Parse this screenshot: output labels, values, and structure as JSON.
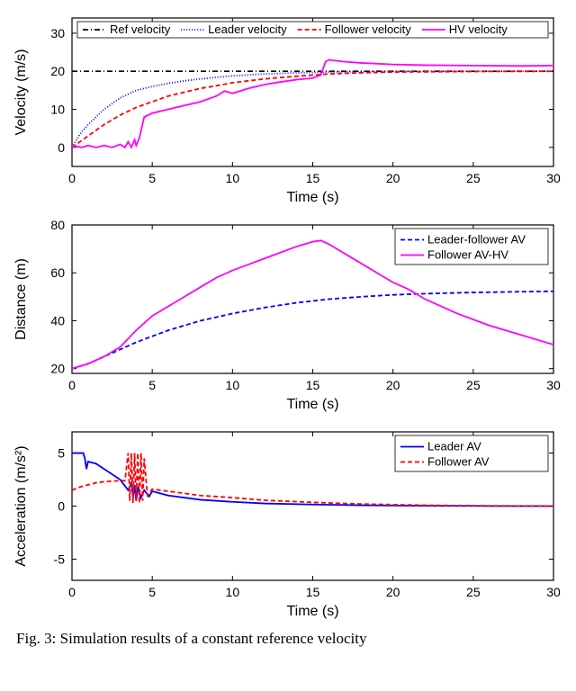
{
  "chart1": {
    "type": "line",
    "title": null,
    "xlabel": "Time (s)",
    "ylabel": "Velocity (m/s)",
    "xlim": [
      0,
      30
    ],
    "ylim": [
      -5,
      34
    ],
    "xticks": [
      0,
      5,
      10,
      15,
      20,
      25,
      30
    ],
    "yticks": [
      0,
      10,
      20,
      30
    ],
    "label_fontsize": 16,
    "tick_fontsize": 14,
    "background_color": "#ffffff",
    "grid_color": "#000000",
    "series": [
      {
        "name": "Ref velocity",
        "color": "#000000",
        "dash": "6,3,1,3",
        "width": 1.6,
        "points": [
          [
            0,
            20
          ],
          [
            30,
            20
          ]
        ]
      },
      {
        "name": "Leader velocity",
        "color": "#0000ff",
        "dash": "1,2",
        "width": 1.8,
        "points": [
          [
            0,
            0
          ],
          [
            0.5,
            3.5
          ],
          [
            1,
            6
          ],
          [
            2,
            10
          ],
          [
            3,
            13
          ],
          [
            4,
            15
          ],
          [
            5,
            16
          ],
          [
            6,
            16.8
          ],
          [
            7,
            17.5
          ],
          [
            8,
            18
          ],
          [
            9,
            18.4
          ],
          [
            10,
            18.8
          ],
          [
            12,
            19.3
          ],
          [
            14,
            19.6
          ],
          [
            16,
            19.8
          ],
          [
            18,
            19.9
          ],
          [
            20,
            19.95
          ],
          [
            25,
            20
          ],
          [
            30,
            20
          ]
        ]
      },
      {
        "name": "Follower velocity",
        "color": "#ff0000",
        "dash": "5,3",
        "width": 1.8,
        "points": [
          [
            0,
            0
          ],
          [
            0.5,
            1.5
          ],
          [
            1,
            3
          ],
          [
            2,
            6
          ],
          [
            3,
            8.5
          ],
          [
            4,
            10.5
          ],
          [
            5,
            12
          ],
          [
            6,
            13.5
          ],
          [
            7,
            14.5
          ],
          [
            8,
            15.5
          ],
          [
            9,
            16.2
          ],
          [
            10,
            17
          ],
          [
            12,
            18
          ],
          [
            14,
            18.7
          ],
          [
            16,
            19.3
          ],
          [
            18,
            19.6
          ],
          [
            20,
            19.8
          ],
          [
            25,
            19.95
          ],
          [
            30,
            20
          ]
        ]
      },
      {
        "name": "HV velocity",
        "color": "#ff00ff",
        "dash": "none",
        "width": 1.8,
        "points": [
          [
            0,
            0
          ],
          [
            0.3,
            0.3
          ],
          [
            0.6,
            0
          ],
          [
            1,
            0.5
          ],
          [
            1.5,
            0
          ],
          [
            2,
            0.5
          ],
          [
            2.5,
            0
          ],
          [
            3,
            0.8
          ],
          [
            3.3,
            0
          ],
          [
            3.5,
            1.5
          ],
          [
            3.7,
            0
          ],
          [
            3.9,
            2
          ],
          [
            4,
            0.5
          ],
          [
            4.2,
            2.5
          ],
          [
            4.5,
            8
          ],
          [
            5,
            9
          ],
          [
            5.5,
            9.5
          ],
          [
            6,
            10
          ],
          [
            7,
            11
          ],
          [
            8,
            12
          ],
          [
            9,
            13.5
          ],
          [
            9.5,
            14.8
          ],
          [
            10,
            14.2
          ],
          [
            11,
            15.5
          ],
          [
            12,
            16.5
          ],
          [
            13,
            17.2
          ],
          [
            14,
            17.8
          ],
          [
            15,
            18.2
          ],
          [
            15.5,
            19
          ],
          [
            15.8,
            22.5
          ],
          [
            16,
            23
          ],
          [
            17,
            22.5
          ],
          [
            18,
            22.2
          ],
          [
            20,
            21.8
          ],
          [
            22,
            21.6
          ],
          [
            25,
            21.5
          ],
          [
            28,
            21.4
          ],
          [
            30,
            21.5
          ]
        ]
      }
    ],
    "legend": {
      "position": "top",
      "items": [
        "Ref velocity",
        "Leader velocity",
        "Follower velocity",
        "HV velocity"
      ]
    }
  },
  "chart2": {
    "type": "line",
    "xlabel": "Time (s)",
    "ylabel": "Distance (m)",
    "xlim": [
      0,
      30
    ],
    "ylim": [
      18,
      80
    ],
    "xticks": [
      0,
      5,
      10,
      15,
      20,
      25,
      30
    ],
    "yticks": [
      20,
      40,
      60,
      80
    ],
    "label_fontsize": 16,
    "tick_fontsize": 14,
    "background_color": "#ffffff",
    "series": [
      {
        "name": "Leader-follower AV",
        "color": "#0000ff",
        "dash": "5,3",
        "width": 1.8,
        "points": [
          [
            0,
            20
          ],
          [
            1,
            22
          ],
          [
            2,
            25
          ],
          [
            3,
            28
          ],
          [
            4,
            31
          ],
          [
            5,
            33.5
          ],
          [
            6,
            36
          ],
          [
            7,
            38
          ],
          [
            8,
            40
          ],
          [
            9,
            41.5
          ],
          [
            10,
            43
          ],
          [
            12,
            45.5
          ],
          [
            14,
            47.5
          ],
          [
            16,
            49
          ],
          [
            18,
            50
          ],
          [
            20,
            50.8
          ],
          [
            22,
            51.3
          ],
          [
            25,
            51.8
          ],
          [
            28,
            52.1
          ],
          [
            30,
            52.3
          ]
        ]
      },
      {
        "name": "Follower AV-HV",
        "color": "#ff00ff",
        "dash": "none",
        "width": 1.8,
        "points": [
          [
            0,
            20
          ],
          [
            1,
            22
          ],
          [
            2,
            25
          ],
          [
            3,
            29
          ],
          [
            4,
            36
          ],
          [
            5,
            42
          ],
          [
            6,
            46
          ],
          [
            7,
            50
          ],
          [
            8,
            54
          ],
          [
            9,
            58
          ],
          [
            10,
            61
          ],
          [
            11,
            63.5
          ],
          [
            12,
            66
          ],
          [
            13,
            68.5
          ],
          [
            14,
            71
          ],
          [
            15,
            73
          ],
          [
            15.5,
            73.5
          ],
          [
            16,
            72
          ],
          [
            17,
            68
          ],
          [
            18,
            64
          ],
          [
            19,
            60
          ],
          [
            20,
            56
          ],
          [
            21,
            53
          ],
          [
            22,
            49
          ],
          [
            24,
            43
          ],
          [
            26,
            38
          ],
          [
            28,
            34
          ],
          [
            30,
            30
          ]
        ]
      }
    ],
    "legend": {
      "position": "top-right",
      "items": [
        "Leader-follower AV",
        "Follower AV-HV"
      ]
    }
  },
  "chart3": {
    "type": "line",
    "xlabel": "Time (s)",
    "ylabel": "Acceleration (m/s²)",
    "ylabel_display": "Acceleration (m/s²)",
    "xlim": [
      0,
      30
    ],
    "ylim": [
      -7,
      7
    ],
    "xticks": [
      0,
      5,
      10,
      15,
      20,
      25,
      30
    ],
    "yticks": [
      -5,
      0,
      5
    ],
    "label_fontsize": 16,
    "tick_fontsize": 14,
    "background_color": "#ffffff",
    "series": [
      {
        "name": "Leader AV",
        "color": "#0000ff",
        "dash": "none",
        "width": 1.8,
        "points": [
          [
            0,
            5
          ],
          [
            0.3,
            5
          ],
          [
            0.5,
            5
          ],
          [
            0.7,
            5
          ],
          [
            0.8,
            4.5
          ],
          [
            0.9,
            3.5
          ],
          [
            1,
            4.2
          ],
          [
            1.5,
            4
          ],
          [
            2,
            3.5
          ],
          [
            2.5,
            3
          ],
          [
            3,
            2.5
          ],
          [
            3.5,
            1.5
          ],
          [
            3.7,
            2.2
          ],
          [
            3.8,
            0.8
          ],
          [
            3.9,
            2
          ],
          [
            4,
            0.5
          ],
          [
            4.1,
            1.8
          ],
          [
            4.3,
            0.8
          ],
          [
            4.5,
            1.5
          ],
          [
            4.8,
            0.9
          ],
          [
            5,
            1.4
          ],
          [
            5.5,
            1.2
          ],
          [
            6,
            1
          ],
          [
            7,
            0.8
          ],
          [
            8,
            0.6
          ],
          [
            10,
            0.4
          ],
          [
            12,
            0.25
          ],
          [
            15,
            0.15
          ],
          [
            18,
            0.08
          ],
          [
            22,
            0.03
          ],
          [
            26,
            0.01
          ],
          [
            30,
            0
          ]
        ]
      },
      {
        "name": "Follower AV",
        "color": "#ff0000",
        "dash": "5,3",
        "width": 1.8,
        "points": [
          [
            0,
            1.5
          ],
          [
            0.5,
            1.8
          ],
          [
            1,
            2
          ],
          [
            1.5,
            2.2
          ],
          [
            2,
            2.3
          ],
          [
            2.5,
            2.35
          ],
          [
            3,
            2.4
          ],
          [
            3.3,
            2.4
          ],
          [
            3.5,
            5
          ],
          [
            3.6,
            0.5
          ],
          [
            3.7,
            5
          ],
          [
            3.8,
            0.3
          ],
          [
            3.9,
            5
          ],
          [
            4,
            0.5
          ],
          [
            4.1,
            5
          ],
          [
            4.2,
            0.3
          ],
          [
            4.3,
            5
          ],
          [
            4.4,
            0.5
          ],
          [
            4.5,
            4.5
          ],
          [
            4.7,
            1
          ],
          [
            5,
            1.6
          ],
          [
            5.5,
            1.5
          ],
          [
            6,
            1.4
          ],
          [
            7,
            1.2
          ],
          [
            8,
            1
          ],
          [
            10,
            0.8
          ],
          [
            12,
            0.55
          ],
          [
            15,
            0.35
          ],
          [
            18,
            0.2
          ],
          [
            22,
            0.08
          ],
          [
            26,
            0.02
          ],
          [
            30,
            0
          ]
        ]
      }
    ],
    "legend": {
      "position": "top-right",
      "items": [
        "Leader AV",
        "Follower AV"
      ]
    }
  },
  "caption": "Fig. 3: Simulation results of a constant reference velocity"
}
